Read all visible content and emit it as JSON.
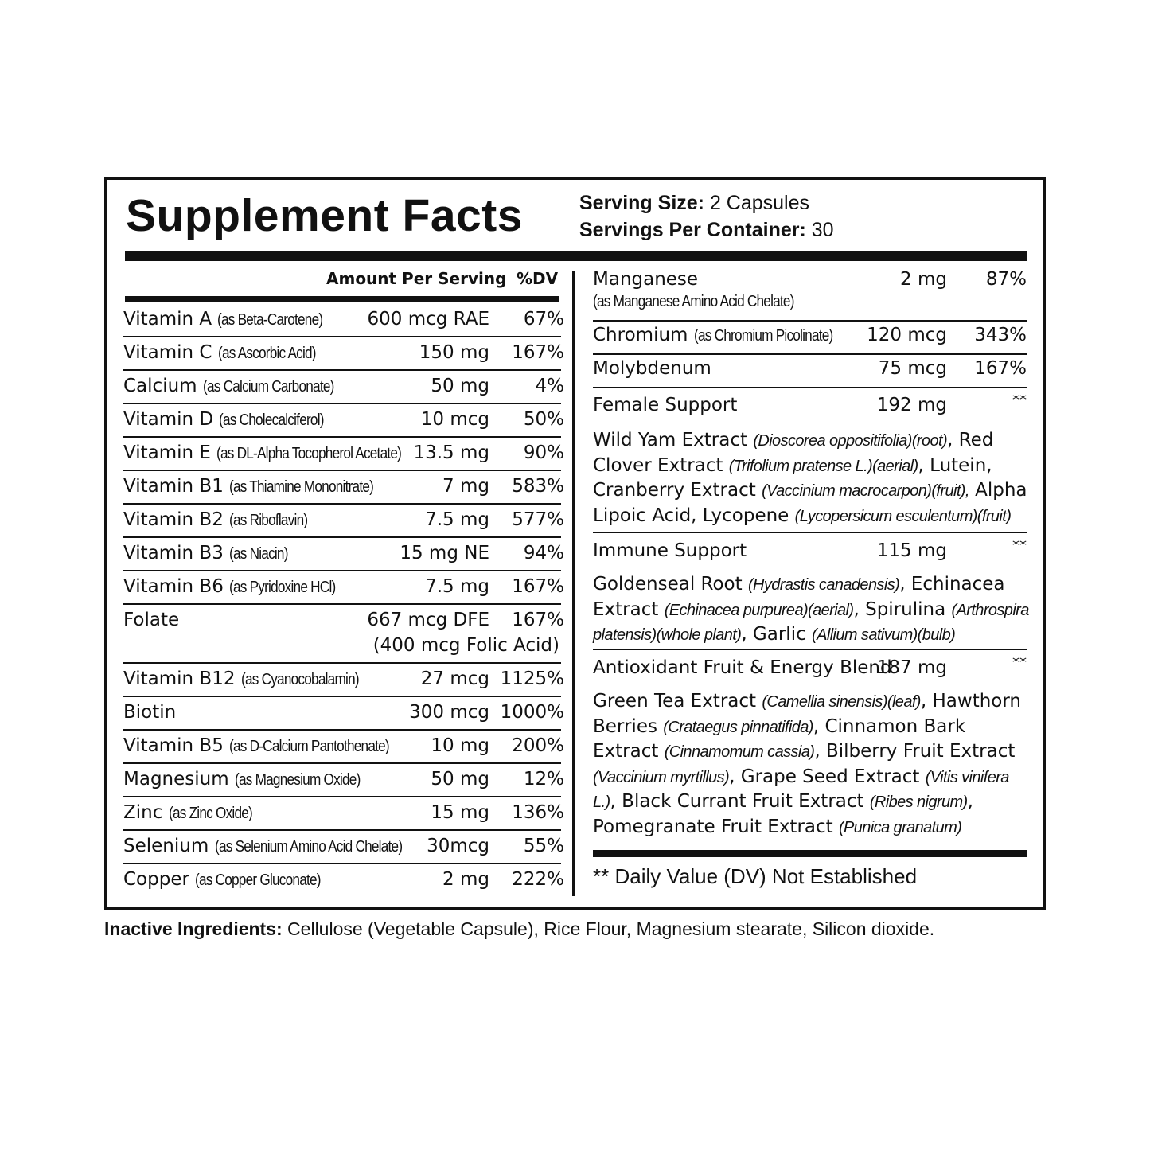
{
  "header": {
    "title": "Supplement Facts",
    "serving_size_label": "Serving Size:",
    "serving_size_value": " 2 Capsules",
    "servings_per_container_label": "Servings Per Container:",
    "servings_per_container_value": " 30"
  },
  "left": {
    "amount_header": "Amount Per Serving",
    "dv_header": "%DV",
    "rows": [
      {
        "name": "Vitamin A",
        "sub": "(as Beta-Carotene)",
        "amount": "600 mcg RAE",
        "dv": "67%"
      },
      {
        "name": "Vitamin C",
        "sub": "(as Ascorbic Acid)",
        "amount": "150 mg",
        "dv": "167%"
      },
      {
        "name": "Calcium",
        "sub": "(as Calcium Carbonate)",
        "amount": "50 mg",
        "dv": "4%"
      },
      {
        "name": "Vitamin D",
        "sub": "(as Cholecalciferol)",
        "amount": "10 mcg",
        "dv": "50%"
      },
      {
        "name": "Vitamin E",
        "sub": "(as DL-Alpha Tocopherol Acetate)",
        "amount": "13.5 mg",
        "dv": "90%"
      },
      {
        "name": "Vitamin B1",
        "sub": "(as Thiamine Mononitrate)",
        "amount": "7 mg",
        "dv": "583%"
      },
      {
        "name": "Vitamin B2",
        "sub": "(as Riboflavin)",
        "amount": "7.5 mg",
        "dv": "577%"
      },
      {
        "name": "Vitamin B3",
        "sub": "(as Niacin)",
        "amount": "15 mg NE",
        "dv": "94%"
      },
      {
        "name": "Vitamin B6",
        "sub": "(as Pyridoxine HCl)",
        "amount": "7.5 mg",
        "dv": "167%"
      },
      {
        "name": "Folate",
        "sub": "",
        "amount": "667 mcg DFE",
        "amount2": "(400 mcg Folic Acid)",
        "dv": "167%"
      },
      {
        "name": "Vitamin B12",
        "sub": "(as Cyanocobalamin)",
        "amount": "27 mcg",
        "dv": "1125%"
      },
      {
        "name": "Biotin",
        "sub": "",
        "amount": "300 mcg",
        "dv": "1000%"
      },
      {
        "name": "Vitamin B5",
        "sub": "(as D-Calcium Pantothenate)",
        "amount": "10 mg",
        "dv": "200%"
      },
      {
        "name": "Magnesium",
        "sub": "(as Magnesium Oxide)",
        "amount": "50 mg",
        "dv": "12%"
      },
      {
        "name": "Zinc",
        "sub": "(as Zinc Oxide)",
        "amount": "15 mg",
        "dv": "136%"
      },
      {
        "name": "Selenium",
        "sub": "(as Selenium Amino Acid Chelate)",
        "amount": "30mcg",
        "dv": "55%"
      },
      {
        "name": "Copper",
        "sub": "(as Copper Gluconate)",
        "amount": "2 mg",
        "dv": "222%"
      }
    ]
  },
  "right": {
    "manganese": {
      "name": "Manganese",
      "sub": "(as Manganese Amino Acid Chelate)",
      "amount": "2 mg",
      "dv": "87%"
    },
    "chromium": {
      "name": "Chromium",
      "sub": "(as Chromium Picolinate)",
      "amount": "120 mcg",
      "dv": "343%"
    },
    "molybdenum": {
      "name": "Molybdenum",
      "amount": "75 mcg",
      "dv": "167%"
    },
    "blends": [
      {
        "name": "Female Support",
        "amount": "192 mg",
        "dv": "**",
        "ingredients": [
          {
            "t": "Wild Yam Extract "
          },
          {
            "t": "(Dioscorea oppositifolia)(root)",
            "i": true
          },
          {
            "t": ", Red Clover Extract "
          },
          {
            "t": "(Trifolium pratense L.)(aerial)",
            "i": true
          },
          {
            "t": ", Lutein, Cranberry Extract "
          },
          {
            "t": "(Vaccinium macrocarpon)(fruit),",
            "i": true
          },
          {
            "t": " Alpha Lipoic Acid, Lycopene "
          },
          {
            "t": "(Lycopersicum esculentum)(fruit)",
            "i": true
          }
        ]
      },
      {
        "name": "Immune Support",
        "amount": "115 mg",
        "dv": "**",
        "ingredients": [
          {
            "t": "Goldenseal Root "
          },
          {
            "t": "(Hydrastis canadensis)",
            "i": true
          },
          {
            "t": ", Echinacea Extract "
          },
          {
            "t": "(Echinacea purpurea)(aerial)",
            "i": true
          },
          {
            "t": ", Spirulina "
          },
          {
            "t": "(Arthrospira platensis)(whole plant)",
            "i": true
          },
          {
            "t": ", Garlic "
          },
          {
            "t": "(Allium sativum)(bulb)",
            "i": true
          }
        ]
      },
      {
        "name": "Antioxidant Fruit & Energy Blend",
        "amount": "187 mg",
        "dv": "**",
        "ingredients": [
          {
            "t": "Green Tea Extract "
          },
          {
            "t": "(Camellia sinensis)(leaf)",
            "i": true
          },
          {
            "t": ", Hawthorn Berries "
          },
          {
            "t": "(Crataegus pinnatifida)",
            "i": true
          },
          {
            "t": ", Cinnamon Bark Extract "
          },
          {
            "t": "(Cinnamomum cassia)",
            "i": true
          },
          {
            "t": ", Bilberry Fruit Extract "
          },
          {
            "t": "(Vaccinium myrtillus)",
            "i": true
          },
          {
            "t": ", Grape Seed Extract "
          },
          {
            "t": "(Vitis vinifera L.)",
            "i": true
          },
          {
            "t": ", Black Currant Fruit Extract "
          },
          {
            "t": "(Ribes nigrum)",
            "i": true
          },
          {
            "t": ", Pomegranate Fruit Extract "
          },
          {
            "t": "(Punica granatum)",
            "i": true
          }
        ]
      }
    ],
    "footnote": "** Daily Value (DV) Not Established"
  },
  "inactive": {
    "label": "Inactive Ingredients:",
    "text": " Cellulose (Vegetable Capsule), Rice Flour, Magnesium stearate, Silicon dioxide."
  }
}
